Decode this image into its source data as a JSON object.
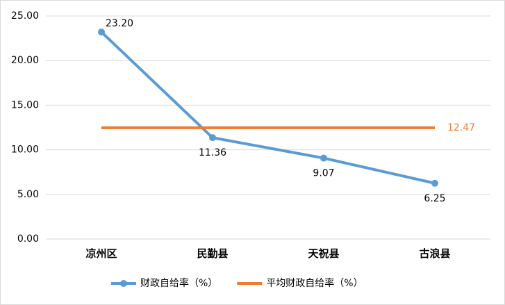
{
  "chart_data": {
    "type": "line",
    "categories": [
      "凉州区",
      "民勤县",
      "天祝县",
      "古浪县"
    ],
    "series": [
      {
        "name": "财政自给率（%）",
        "color": "#5b9bd5",
        "values": [
          23.2,
          11.36,
          9.07,
          6.25
        ],
        "value_labels": [
          "23.20",
          "11.36",
          "9.07",
          "6.25"
        ]
      },
      {
        "name": "平均财政自给率（%）",
        "color": "#ed7d31",
        "values": [
          12.47,
          12.47,
          12.47,
          12.47
        ],
        "value_labels": [
          null,
          null,
          null,
          "12.47"
        ]
      }
    ],
    "ylim": [
      0,
      25
    ],
    "yticks": [
      {
        "value": 0,
        "label": "0.00"
      },
      {
        "value": 5,
        "label": "5.00"
      },
      {
        "value": 10,
        "label": "10.00"
      },
      {
        "value": 15,
        "label": "15.00"
      },
      {
        "value": 20,
        "label": "20.00"
      },
      {
        "value": 25,
        "label": "25.00"
      }
    ],
    "grid": true,
    "legend": "bottom"
  }
}
